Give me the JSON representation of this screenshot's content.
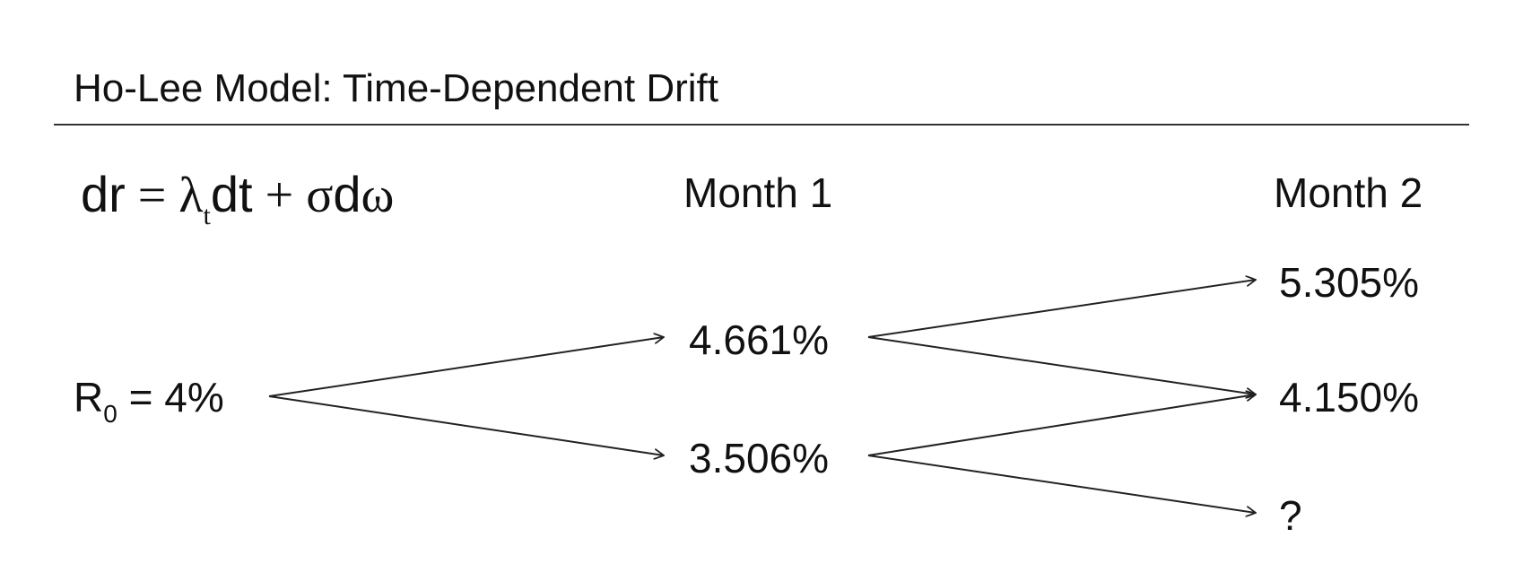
{
  "title": "Ho-Lee Model: Time-Dependent Drift",
  "formula": {
    "dr": "dr",
    "eq": "=",
    "lambda": "λ",
    "sub_t": "t",
    "dt": "dt",
    "plus": "+",
    "sigma": "σ",
    "d": "d",
    "omega": "ω"
  },
  "headers": {
    "month1": "Month 1",
    "month2": "Month 2"
  },
  "root": {
    "label_r": "R",
    "label_sub": "0",
    "label_rest": " = 4%"
  },
  "month1_nodes": {
    "up": "4.661%",
    "down": "3.506%"
  },
  "month2_nodes": {
    "uu": "5.305%",
    "ud": "4.150%",
    "dd": "?"
  },
  "colors": {
    "text": "#111111",
    "rule": "#333333",
    "arrow": "#222222"
  }
}
